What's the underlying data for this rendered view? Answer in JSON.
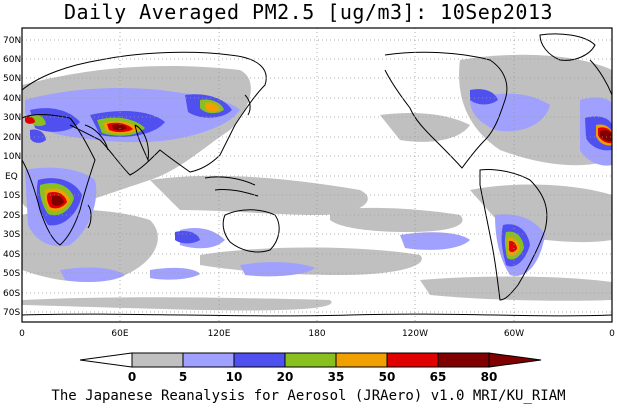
{
  "title": "Daily Averaged PM2.5 [ug/m3]: 10Sep2013",
  "footer": "The Japanese Reanalysis for Aerosol (JRAero) v1.0 MRI/KU_RIAM",
  "lat_labels": [
    "70N",
    "60N",
    "50N",
    "40N",
    "30N",
    "20N",
    "10N",
    "EQ",
    "10S",
    "20S",
    "30S",
    "40S",
    "50S",
    "60S",
    "70S"
  ],
  "lon_labels": [
    "0",
    "60E",
    "120E",
    "180",
    "120W",
    "60W",
    "0"
  ],
  "colorbar": {
    "levels": [
      "0",
      "5",
      "10",
      "20",
      "35",
      "50",
      "65",
      "80"
    ],
    "colors": [
      "#ffffff",
      "#c0c0c0",
      "#a0a0ff",
      "#5050f0",
      "#88c020",
      "#f0a000",
      "#e00000",
      "#800000"
    ]
  },
  "map_colors": {
    "land_outline": "#000000",
    "ocean": "#ffffff",
    "band_5_10": "#c0c0c0",
    "band_10_20": "#a0a0ff",
    "band_20_35": "#5050f0",
    "band_35_50": "#88c020",
    "band_50_65": "#f0a000",
    "band_65_80": "#e00000",
    "band_80_plus": "#800000"
  }
}
